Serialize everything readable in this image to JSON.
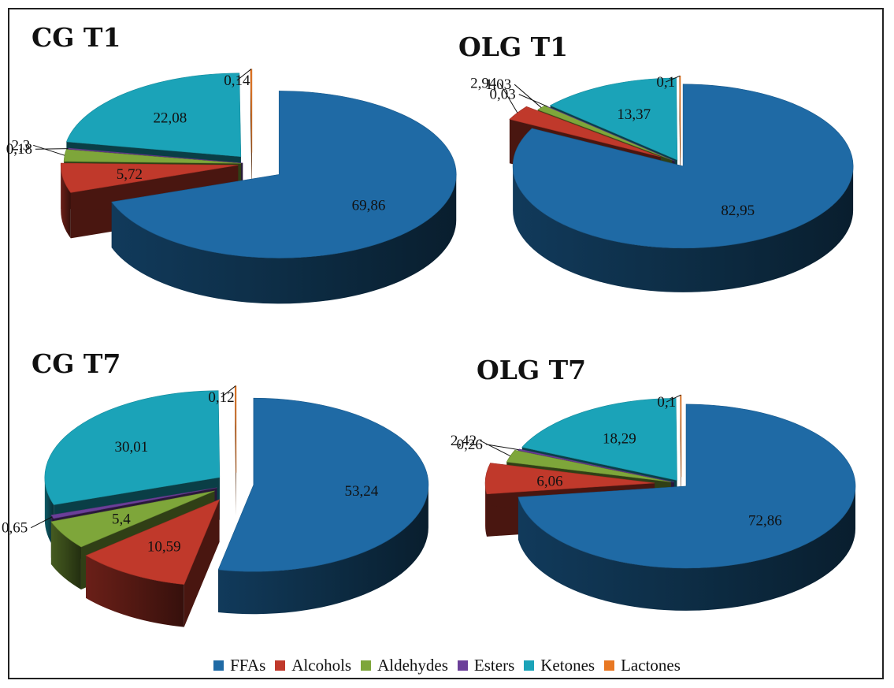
{
  "categories": [
    "FFAs",
    "Alcohols",
    "Aldehydes",
    "Esters",
    "Ketones",
    "Lactones"
  ],
  "colors": {
    "FFAs": "#1f6aa5",
    "Alcohols": "#c0392b",
    "Aldehydes": "#7ea63a",
    "Esters": "#6b3f99",
    "Ketones": "#1ba3b8",
    "Lactones": "#e87722"
  },
  "chart_data": [
    {
      "type": "pie",
      "title": "CG T1",
      "categories": [
        "FFAs",
        "Alcohols",
        "Aldehydes",
        "Esters",
        "Ketones",
        "Lactones"
      ],
      "values": [
        69.86,
        5.72,
        2.3,
        0.18,
        22.08,
        0.14
      ],
      "labels": [
        "69,86",
        "5,72",
        "2,3",
        "0,18",
        "22,08",
        "0,14"
      ]
    },
    {
      "type": "pie",
      "title": "OLG T1",
      "categories": [
        "FFAs",
        "Alcohols",
        "Aldehydes",
        "Esters",
        "Ketones",
        "Lactones"
      ],
      "values": [
        82.95,
        2.94,
        1.03,
        0.03,
        13.37,
        0.1
      ],
      "labels": [
        "82,95",
        "2,94",
        "1,03",
        "0,03",
        "13,37",
        "0,1"
      ]
    },
    {
      "type": "pie",
      "title": "CG T7",
      "categories": [
        "FFAs",
        "Alcohols",
        "Aldehydes",
        "Esters",
        "Ketones",
        "Lactones"
      ],
      "values": [
        53.24,
        10.59,
        5.4,
        0.65,
        30.01,
        0.12
      ],
      "labels": [
        "53,24",
        "10,59",
        "5,4",
        "0,65",
        "30,01",
        "0,12"
      ]
    },
    {
      "type": "pie",
      "title": "OLG T7",
      "categories": [
        "FFAs",
        "Alcohols",
        "Aldehydes",
        "Esters",
        "Ketones",
        "Lactones"
      ],
      "values": [
        72.86,
        6.06,
        2.42,
        0.26,
        18.29,
        0.1
      ],
      "labels": [
        "72,86",
        "6,06",
        "2,42",
        "0,26",
        "18,29",
        "0,1"
      ]
    }
  ]
}
